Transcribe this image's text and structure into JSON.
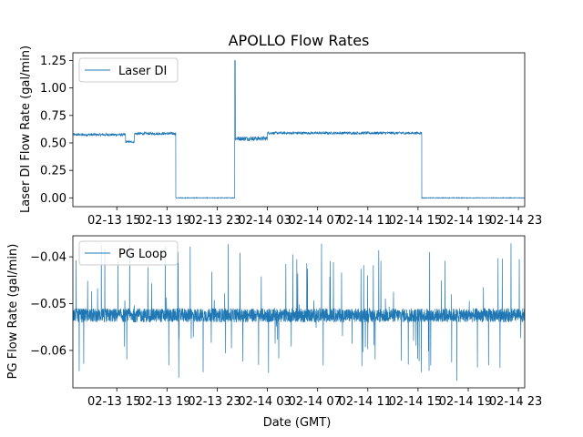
{
  "chart_data": {
    "type": "line",
    "title": "APOLLO Flow Rates",
    "xlabel": "Date (GMT)",
    "x_ticks": [
      "02-13 15",
      "02-13 19",
      "02-13 23",
      "02-14 03",
      "02-14 07",
      "02-14 11",
      "02-14 15",
      "02-14 19",
      "02-14 23"
    ],
    "x_tick_hours": [
      15,
      19,
      23,
      27,
      31,
      35,
      39,
      43,
      47
    ],
    "xlim_hours": [
      11.5,
      47.5
    ],
    "panels": [
      {
        "ylabel": "Laser DI Flow Rate (gal/min)",
        "legend": "Laser DI",
        "ylim": [
          -0.08,
          1.32
        ],
        "y_ticks": [
          "0.00",
          "0.25",
          "0.50",
          "0.75",
          "1.00",
          "1.25"
        ],
        "y_tick_values": [
          0.0,
          0.25,
          0.5,
          0.75,
          1.0,
          1.25
        ],
        "color": "#1f77b4",
        "segments": [
          {
            "start": 11.5,
            "end": 15.7,
            "mean": 0.575,
            "noise": 0.012
          },
          {
            "start": 15.7,
            "end": 16.4,
            "mean": 0.51,
            "noise": 0.01
          },
          {
            "start": 16.4,
            "end": 19.7,
            "mean": 0.585,
            "noise": 0.012
          },
          {
            "start": 19.7,
            "end": 24.4,
            "mean": 0.0,
            "noise": 0.003
          },
          {
            "start": 24.4,
            "end": 24.45,
            "mean": 1.25,
            "noise": 0.0
          },
          {
            "start": 24.45,
            "end": 27.0,
            "mean": 0.54,
            "noise": 0.02
          },
          {
            "start": 27.0,
            "end": 39.3,
            "mean": 0.59,
            "noise": 0.012
          },
          {
            "start": 39.3,
            "end": 47.5,
            "mean": 0.0,
            "noise": 0.003
          }
        ]
      },
      {
        "ylabel": "PG Flow Rate (gal/min)",
        "legend": "PG Loop",
        "ylim": [
          -0.068,
          -0.0355
        ],
        "y_ticks": [
          "−0.04",
          "−0.05",
          "−0.06"
        ],
        "y_tick_values": [
          -0.04,
          -0.05,
          -0.06
        ],
        "color": "#1f77b4",
        "mean": -0.0525,
        "band": 0.0015,
        "min": -0.0665,
        "max": -0.037
      }
    ]
  }
}
